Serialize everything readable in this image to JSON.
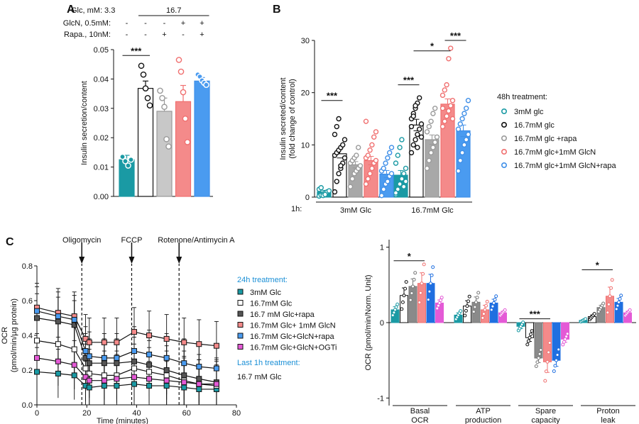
{
  "panels": {
    "a": "A",
    "b": "B",
    "c": "C"
  },
  "chart_data": [
    {
      "id": "A",
      "type": "bar",
      "ylabel": "Insulin secretion/content",
      "ylim": [
        0,
        0.05
      ],
      "yticks": [
        "0.00",
        "0.01",
        "0.02",
        "0.03",
        "0.04",
        "0.05"
      ],
      "yticks_v": [
        0,
        0.01,
        0.02,
        0.03,
        0.04,
        0.05
      ],
      "conditions": {
        "rows": [
          {
            "label": "Glc, mM: 3.3",
            "values": [
              "",
              "16.7"
            ]
          },
          {
            "label": "GlcN, 0.5mM:",
            "values": [
              "-",
              "-",
              "-",
              "+",
              "+"
            ]
          },
          {
            "label": "Rapa., 10nM:",
            "values": [
              "-",
              "-",
              "+",
              "-",
              "+"
            ]
          }
        ]
      },
      "bars": [
        {
          "value": 0.0125,
          "err": 0.0015,
          "color": "#1a9aa4",
          "fill": "#1a9aa4",
          "points": [
            0.0135,
            0.012,
            0.0105,
            0.0125
          ]
        },
        {
          "value": 0.0368,
          "err": 0.0025,
          "color": "#111111",
          "fill": "#ffffff",
          "points": [
            0.0445,
            0.0415,
            0.0368,
            0.0335,
            0.031
          ]
        },
        {
          "value": 0.029,
          "err": 0.0045,
          "color": "#9a9a9a",
          "fill": "#c8c8c8",
          "points": [
            0.036,
            0.0335,
            0.0305,
            0.0195,
            0.017
          ]
        },
        {
          "value": 0.0323,
          "err": 0.0055,
          "color": "#f07070",
          "fill": "#f48a8a",
          "points": [
            0.0465,
            0.0425,
            0.0355,
            0.0265,
            0.0185
          ]
        },
        {
          "value": 0.0393,
          "err": 0.0012,
          "color": "#3f8fe8",
          "fill": "#4a9bf0",
          "points": [
            0.0415,
            0.0408,
            0.0395,
            0.0387,
            0.038
          ]
        }
      ],
      "sig": [
        {
          "from": 0,
          "to": 1,
          "label": "***",
          "y": 0.048
        }
      ]
    },
    {
      "id": "B",
      "type": "bar",
      "ylabel": "Insulin secreted/content",
      "ylabel2": "(fold change of control)",
      "ylim": [
        0,
        30
      ],
      "yticks": [
        "0",
        "10",
        "20",
        "30"
      ],
      "yticks_v": [
        0,
        10,
        20,
        30
      ],
      "groups_label": "1h:",
      "groups": [
        "3mM Glc",
        "16.7mM Glc"
      ],
      "series": [
        {
          "name": "3mM glc",
          "color": "#1a9aa4",
          "fill": "#1a9aa4",
          "values": [
            1.0,
            4.2
          ],
          "err": [
            0.3,
            0.9
          ]
        },
        {
          "name": "16.7mM glc",
          "color": "#111111",
          "fill": "#ffffff",
          "values": [
            8.3,
            13.8
          ],
          "err": [
            0.8,
            1.1
          ]
        },
        {
          "name": "16.7mM glc +rapa",
          "color": "#9a9a9a",
          "fill": "#a8a8a8",
          "values": [
            6.2,
            11.0
          ],
          "err": [
            0.6,
            0.9
          ]
        },
        {
          "name": "16.7mM glc+1mM GlcN",
          "color": "#f07070",
          "fill": "#f48a8a",
          "values": [
            7.0,
            17.8
          ],
          "err": [
            0.8,
            1.0
          ]
        },
        {
          "name": "16.7mM glc+1mM GlcN+rapa",
          "color": "#3f8fe8",
          "fill": "#4a9bf0",
          "values": [
            4.4,
            12.7
          ],
          "err": [
            0.7,
            1.1
          ]
        }
      ],
      "points": [
        [
          [
            0.2,
            0.4,
            0.6,
            0.8,
            1.0,
            1.2,
            1.5,
            1.8,
            0.3,
            0.5
          ],
          [
            0.5,
            1.5,
            2.5,
            3.5,
            4.5,
            5.5,
            6.5,
            8.0,
            9.5,
            11.0,
            2.0,
            3.0,
            0.8
          ]
        ],
        [
          [
            1.0,
            3.0,
            4.5,
            5.5,
            6.5,
            7.5,
            8.0,
            8.5,
            9.0,
            9.5,
            10.0,
            11.0,
            12.0,
            13.5,
            15.0,
            6.0
          ],
          [
            8.5,
            10,
            11,
            12,
            13,
            14,
            15,
            16,
            17,
            18,
            19,
            11.5,
            13.5,
            15.5,
            17.5,
            9.5
          ]
        ],
        [
          [
            2.0,
            3.5,
            4.5,
            5.0,
            5.5,
            6.0,
            6.5,
            7.0,
            7.5,
            8.0,
            9.5
          ],
          [
            5.5,
            7.0,
            8.5,
            9.5,
            10.5,
            11.5,
            12.5,
            13.5,
            14.5,
            16.0,
            17.0
          ]
        ],
        [
          [
            2.5,
            3.5,
            4.5,
            5.5,
            6.5,
            7.0,
            7.5,
            8.0,
            9.0,
            10.0,
            11.5,
            12.5,
            14.5
          ],
          [
            13.5,
            14.5,
            15.5,
            16.5,
            17.5,
            18.5,
            19.5,
            20.5,
            21.5,
            26.5,
            28.5,
            15.0,
            17.0
          ]
        ],
        [
          [
            0.3,
            1.5,
            2.5,
            3.0,
            4.0,
            4.5,
            5.0,
            5.5,
            6.5,
            7.5,
            8.5,
            9.5
          ],
          [
            5.0,
            7.0,
            8.5,
            10.0,
            11.0,
            12.0,
            13.0,
            14.0,
            15.0,
            16.0,
            17.0,
            18.5
          ]
        ]
      ],
      "sig": [
        {
          "group": 0,
          "from": 0,
          "to": 1,
          "label": "***",
          "y": 18.5
        },
        {
          "group": 1,
          "from": 0,
          "to": 1,
          "label": "***",
          "y": 21.5
        },
        {
          "group": 1,
          "from": 1,
          "to": 3,
          "label": "*",
          "y": 28.0
        },
        {
          "group": 1,
          "from": 3,
          "to": 4,
          "label": "***",
          "y": 30.0
        }
      ],
      "legend_title": "48h treatment:"
    },
    {
      "id": "C-left",
      "type": "line",
      "ylabel": "OCR",
      "ylabel2": "(pmol/min/µg protein)",
      "xlabel": "Time (minutes)",
      "xlim": [
        0,
        80
      ],
      "ylim": [
        0,
        0.8
      ],
      "xticks": [
        "0",
        "20",
        "40",
        "60",
        "80"
      ],
      "xticks_v": [
        0,
        20,
        40,
        60,
        80
      ],
      "yticks": [
        "0.0",
        "0.2",
        "0.4",
        "0.6",
        "0.8"
      ],
      "yticks_v": [
        0,
        0.2,
        0.4,
        0.6,
        0.8
      ],
      "x": [
        0,
        8.5,
        15,
        19.5,
        21,
        27,
        32,
        39,
        45,
        52,
        59,
        65,
        72
      ],
      "err": 0.14,
      "injections": [
        {
          "label": "Oligomycin",
          "x": 18
        },
        {
          "label": "FCCP",
          "x": 38
        },
        {
          "label": "Rotenone/Antimycin A",
          "x": 57
        }
      ],
      "legend_title": "24h treatment:",
      "series": [
        {
          "name": "3mM Glc",
          "color": "#1a9aa4",
          "y": [
            0.19,
            0.18,
            0.17,
            0.11,
            0.1,
            0.11,
            0.11,
            0.12,
            0.11,
            0.11,
            0.1,
            0.09,
            0.09
          ]
        },
        {
          "name": "16.7mM Glc",
          "color": "#ffffff",
          "y": [
            0.37,
            0.35,
            0.32,
            0.21,
            0.18,
            0.17,
            0.17,
            0.21,
            0.19,
            0.17,
            0.14,
            0.12,
            0.11
          ]
        },
        {
          "name": "16.7 mM Glc+rapa",
          "color": "#555555",
          "y": [
            0.5,
            0.48,
            0.46,
            0.27,
            0.24,
            0.24,
            0.24,
            0.25,
            0.23,
            0.2,
            0.17,
            0.15,
            0.13
          ]
        },
        {
          "name": "16.7mM Glc+ 1mM GlcN",
          "color": "#f48a8a",
          "y": [
            0.56,
            0.53,
            0.51,
            0.38,
            0.36,
            0.36,
            0.36,
            0.42,
            0.4,
            0.38,
            0.36,
            0.35,
            0.34
          ]
        },
        {
          "name": "16.7mM Glc+GlcN+rapa",
          "color": "#4a9bf0",
          "y": [
            0.54,
            0.51,
            0.49,
            0.31,
            0.28,
            0.27,
            0.27,
            0.31,
            0.29,
            0.27,
            0.24,
            0.22,
            0.21
          ]
        },
        {
          "name": "16.7mM Glc+GlcN+OGTi",
          "color": "#e45ad6",
          "y": [
            0.27,
            0.25,
            0.23,
            0.16,
            0.14,
            0.14,
            0.15,
            0.16,
            0.15,
            0.14,
            0.13,
            0.12,
            0.12
          ]
        }
      ],
      "extra_legend_title": "Last 1h treatment:",
      "extra_legend_text": "16.7 mM Glc"
    },
    {
      "id": "C-right",
      "type": "bar",
      "ylabel": "OCR (pmol/min/Norm. Unit)",
      "ylim": [
        -1.1,
        1.1
      ],
      "yticks": [
        "-1",
        "0",
        "1"
      ],
      "yticks_v": [
        -1,
        0,
        1
      ],
      "groups": [
        "Basal\nOCR",
        "ATP\nproduction",
        "Spare\ncapacity",
        "Proton\nleak"
      ],
      "series": [
        {
          "color": "#1a9aa4",
          "fill": "#1a9aa4",
          "values": [
            0.17,
            0.1,
            -0.05,
            0.03
          ],
          "err": [
            0.04,
            0.03,
            0.03,
            0.01
          ]
        },
        {
          "color": "#111111",
          "fill": "#ffffff",
          "values": [
            0.36,
            0.22,
            -0.2,
            0.08
          ],
          "err": [
            0.1,
            0.07,
            0.05,
            0.02
          ]
        },
        {
          "color": "#777777",
          "fill": "#8a8a8a",
          "values": [
            0.48,
            0.27,
            -0.47,
            0.2
          ],
          "err": [
            0.1,
            0.07,
            0.06,
            0.03
          ]
        },
        {
          "color": "#f07070",
          "fill": "#f48a8a",
          "values": [
            0.52,
            0.17,
            -0.52,
            0.35
          ],
          "err": [
            0.14,
            0.06,
            0.14,
            0.12
          ]
        },
        {
          "color": "#1f6fe0",
          "fill": "#1f6fe0",
          "values": [
            0.52,
            0.26,
            -0.5,
            0.27
          ],
          "err": [
            0.12,
            0.05,
            0.08,
            0.05
          ]
        },
        {
          "color": "#e45ad6",
          "fill": "#e45ad6",
          "values": [
            0.26,
            0.13,
            -0.22,
            0.13
          ],
          "err": [
            0.04,
            0.02,
            0.04,
            0.02
          ]
        }
      ],
      "sig": [
        {
          "group": 0,
          "label": "*",
          "y": 0.82
        },
        {
          "group": 2,
          "label": "***",
          "y": 0.05
        },
        {
          "group": 3,
          "label": "*",
          "y": 0.7
        }
      ]
    }
  ]
}
